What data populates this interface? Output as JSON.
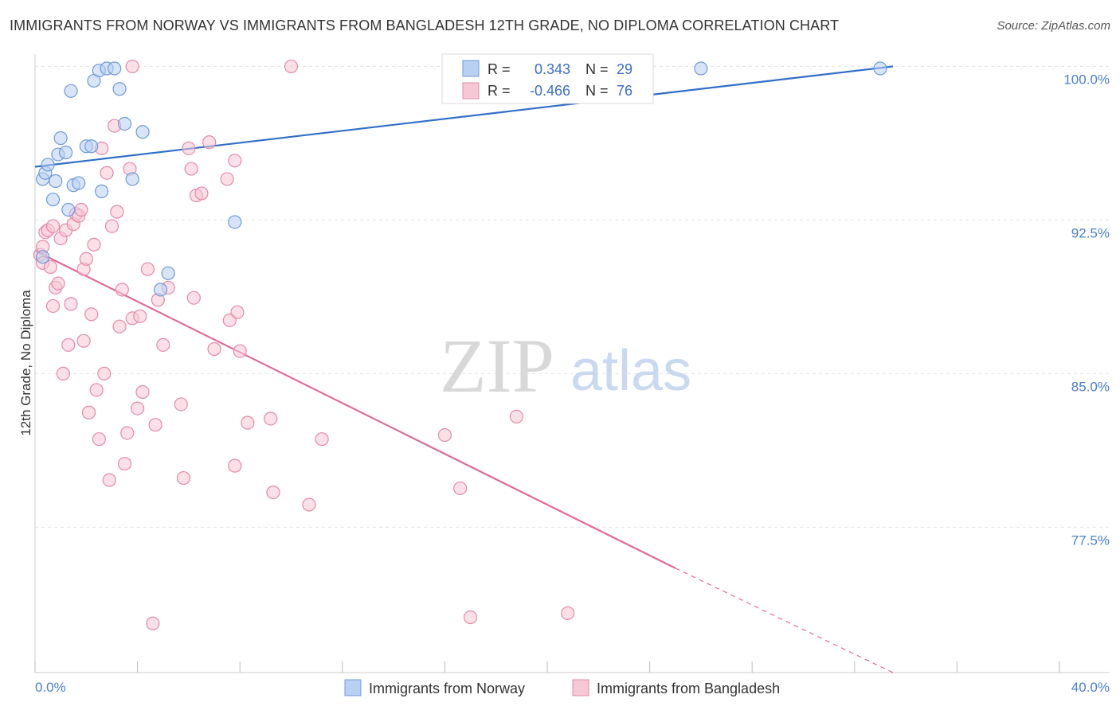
{
  "title": "IMMIGRANTS FROM NORWAY VS IMMIGRANTS FROM BANGLADESH 12TH GRADE, NO DIPLOMA CORRELATION CHART",
  "source": "Source: ZipAtlas.com",
  "watermark": {
    "zip": "ZIP",
    "atlas": "atlas"
  },
  "colors": {
    "norway_fill": "#b8d0f2",
    "norway_stroke": "#6f9ad8",
    "norway_line": "#2f6ec9",
    "bangladesh_fill": "#f8c7d6",
    "bangladesh_stroke": "#e28aa8",
    "bangladesh_line": "#e06a97",
    "grid": "#e3e3e3",
    "axis_label": "#4a7fd0"
  },
  "chart_data": {
    "type": "scatter",
    "title": "IMMIGRANTS FROM NORWAY VS IMMIGRANTS FROM BANGLADESH 12TH GRADE, NO DIPLOMA CORRELATION CHART",
    "xlabel": "",
    "ylabel": "12th Grade, No Diploma",
    "xlim": [
      0,
      40
    ],
    "ylim": [
      70.4,
      100.6
    ],
    "x_tick_labels": [
      "0.0%",
      "40.0%"
    ],
    "y_ticks": [
      100.0,
      92.5,
      85.0,
      77.5
    ],
    "y_tick_labels": [
      "100.0%",
      "92.5%",
      "85.0%",
      "77.5%"
    ],
    "grid": true,
    "legend_position": "top-center",
    "legend": [
      {
        "r_label": "R =",
        "r_value": "0.343",
        "n_label": "N =",
        "n_value": "29"
      },
      {
        "r_label": "R =",
        "r_value": "-0.466",
        "n_label": "N =",
        "n_value": "76"
      }
    ],
    "series": [
      {
        "name": "Immigrants from Norway",
        "points": [
          [
            0.3,
            90.7
          ],
          [
            0.3,
            94.5
          ],
          [
            0.4,
            94.8
          ],
          [
            0.5,
            95.2
          ],
          [
            0.7,
            93.5
          ],
          [
            0.8,
            94.4
          ],
          [
            0.9,
            95.7
          ],
          [
            1.0,
            96.5
          ],
          [
            1.2,
            95.8
          ],
          [
            1.3,
            93.0
          ],
          [
            1.4,
            98.8
          ],
          [
            1.5,
            94.2
          ],
          [
            1.7,
            94.3
          ],
          [
            2.0,
            96.1
          ],
          [
            2.2,
            96.1
          ],
          [
            2.3,
            99.3
          ],
          [
            2.5,
            99.8
          ],
          [
            2.6,
            93.9
          ],
          [
            2.8,
            99.9
          ],
          [
            3.1,
            99.9
          ],
          [
            3.3,
            98.9
          ],
          [
            3.5,
            97.2
          ],
          [
            3.8,
            94.5
          ],
          [
            4.2,
            96.8
          ],
          [
            4.9,
            89.1
          ],
          [
            5.2,
            89.9
          ],
          [
            7.8,
            92.4
          ],
          [
            26.0,
            99.9
          ],
          [
            33.0,
            99.9
          ]
        ],
        "trend": {
          "x": [
            0.0,
            33.5
          ],
          "y": [
            95.1,
            100.0
          ]
        }
      },
      {
        "name": "Immigrants from Bangladesh",
        "points": [
          [
            0.2,
            90.8
          ],
          [
            0.3,
            91.2
          ],
          [
            0.3,
            90.4
          ],
          [
            0.4,
            91.9
          ],
          [
            0.5,
            92.0
          ],
          [
            0.6,
            90.2
          ],
          [
            0.7,
            92.2
          ],
          [
            0.7,
            88.3
          ],
          [
            0.8,
            89.2
          ],
          [
            0.9,
            89.4
          ],
          [
            1.0,
            91.6
          ],
          [
            1.1,
            85.0
          ],
          [
            1.2,
            92.0
          ],
          [
            1.3,
            86.4
          ],
          [
            1.4,
            88.4
          ],
          [
            1.5,
            92.3
          ],
          [
            1.6,
            92.8
          ],
          [
            1.7,
            92.7
          ],
          [
            1.8,
            93.0
          ],
          [
            1.9,
            86.6
          ],
          [
            1.9,
            90.1
          ],
          [
            2.0,
            90.6
          ],
          [
            2.1,
            83.1
          ],
          [
            2.2,
            87.9
          ],
          [
            2.3,
            91.3
          ],
          [
            2.4,
            84.2
          ],
          [
            2.5,
            81.8
          ],
          [
            2.6,
            96.0
          ],
          [
            2.7,
            85.0
          ],
          [
            2.8,
            94.8
          ],
          [
            2.9,
            79.8
          ],
          [
            3.0,
            92.2
          ],
          [
            3.1,
            97.1
          ],
          [
            3.2,
            92.9
          ],
          [
            3.3,
            87.3
          ],
          [
            3.4,
            89.1
          ],
          [
            3.5,
            80.6
          ],
          [
            3.6,
            82.1
          ],
          [
            3.7,
            95.0
          ],
          [
            3.8,
            87.7
          ],
          [
            3.8,
            100.0
          ],
          [
            4.0,
            83.3
          ],
          [
            4.1,
            87.8
          ],
          [
            4.2,
            84.1
          ],
          [
            4.4,
            90.1
          ],
          [
            4.6,
            72.8
          ],
          [
            4.7,
            82.5
          ],
          [
            4.8,
            88.6
          ],
          [
            5.0,
            86.4
          ],
          [
            5.2,
            89.2
          ],
          [
            5.7,
            83.5
          ],
          [
            5.8,
            79.9
          ],
          [
            6.0,
            96.0
          ],
          [
            6.1,
            95.0
          ],
          [
            6.2,
            88.7
          ],
          [
            6.3,
            93.7
          ],
          [
            6.5,
            93.8
          ],
          [
            6.8,
            96.3
          ],
          [
            7.0,
            86.2
          ],
          [
            7.5,
            94.5
          ],
          [
            7.6,
            87.6
          ],
          [
            7.8,
            95.4
          ],
          [
            7.8,
            80.5
          ],
          [
            7.9,
            88.0
          ],
          [
            8.0,
            86.1
          ],
          [
            8.3,
            82.6
          ],
          [
            9.2,
            82.8
          ],
          [
            9.3,
            79.2
          ],
          [
            10.0,
            100.0
          ],
          [
            10.7,
            78.6
          ],
          [
            11.2,
            81.8
          ],
          [
            16.0,
            82.0
          ],
          [
            16.6,
            79.4
          ],
          [
            17.0,
            73.1
          ],
          [
            18.8,
            82.9
          ],
          [
            20.8,
            73.3
          ]
        ],
        "trend": {
          "x": [
            0.0,
            25.0
          ],
          "y": [
            91.0,
            75.5
          ]
        },
        "trend_extension": {
          "x": [
            25.0,
            33.5
          ],
          "y": [
            75.5,
            70.4
          ]
        }
      }
    ]
  },
  "bottom_legend": [
    "Immigrants from Norway",
    "Immigrants from Bangladesh"
  ]
}
